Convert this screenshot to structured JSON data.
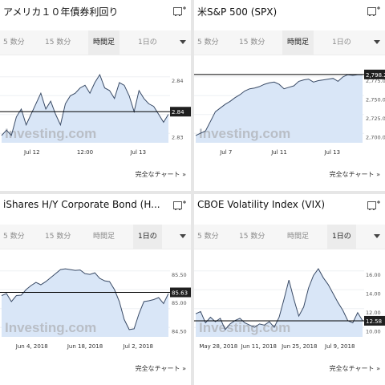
{
  "panels": [
    {
      "title": "アメリカ１０年債券利回り",
      "tabs": [
        "5 数分",
        "15 数分",
        "時間足",
        "1日の"
      ],
      "active_tab": 2,
      "footer": "完全なチャート »",
      "watermark": "Investing.com",
      "chart_data": {
        "type": "line",
        "x_ticks": [
          "Jul 12",
          "12:00",
          "Jul 13"
        ],
        "y_ticks": [
          "2.84",
          "2.83"
        ],
        "current_value_label": "2.84",
        "values": [
          2.838,
          2.84,
          2.838,
          2.845,
          2.848,
          2.842,
          2.846,
          2.85,
          2.854,
          2.848,
          2.851,
          2.846,
          2.842,
          2.85,
          2.853,
          2.854,
          2.856,
          2.857,
          2.854,
          2.858,
          2.861,
          2.856,
          2.855,
          2.852,
          2.858,
          2.857,
          2.853,
          2.847,
          2.855,
          2.852,
          2.85,
          2.849,
          2.846,
          2.843,
          2.846
        ],
        "last_line": 2.847
      }
    },
    {
      "title": "米S&P 500 (SPX)",
      "tabs": [
        "5 数分",
        "15 数分",
        "時間足",
        "1日の"
      ],
      "active_tab": 2,
      "footer": "完全なチャート »",
      "watermark": "Investing.com",
      "chart_data": {
        "type": "area",
        "x_ticks": [
          "Jul 7",
          "Jul 11",
          "Jul 13"
        ],
        "y_ticks": [
          "2,775.00",
          "2,750.00",
          "2,725.00",
          "2,700.00"
        ],
        "current_value_label": "2,798.29",
        "values": [
          2716,
          2719,
          2722,
          2735,
          2748,
          2753,
          2758,
          2762,
          2767,
          2771,
          2776,
          2779,
          2780,
          2782,
          2785,
          2787,
          2788,
          2785,
          2779,
          2781,
          2783,
          2789,
          2791,
          2792,
          2788,
          2790,
          2791,
          2792,
          2793,
          2789,
          2795,
          2798,
          2797,
          2798,
          2798
        ],
        "last_line": 2798.29
      }
    },
    {
      "title": "iShares H/Y Corporate Bond (H...",
      "tabs": [
        "5 数分",
        "15 数分",
        "時間足",
        "1日の"
      ],
      "active_tab": 3,
      "footer": "完全なチャート »",
      "watermark": "Investing.com",
      "chart_data": {
        "type": "area",
        "x_ticks": [
          "Jun 4, 2018",
          "Jun 18, 2018",
          "Jul 2, 2018"
        ],
        "y_ticks": [
          "85.50",
          "85.00",
          "84.50"
        ],
        "current_value_label": "85.63",
        "values": [
          85.55,
          85.6,
          85.4,
          85.55,
          85.56,
          85.7,
          85.8,
          85.88,
          85.82,
          85.9,
          86.0,
          86.1,
          86.2,
          86.22,
          86.2,
          86.18,
          86.19,
          86.1,
          86.08,
          86.12,
          85.98,
          85.92,
          85.9,
          85.7,
          85.4,
          84.95,
          84.7,
          84.72,
          85.1,
          85.4,
          85.42,
          85.45,
          85.5,
          85.35,
          85.6
        ],
        "last_line": 85.63
      }
    },
    {
      "title": "CBOE Volatility Index (VIX)",
      "tabs": [
        "5 数分",
        "15 数分",
        "時間足",
        "1日の"
      ],
      "active_tab": 3,
      "footer": "完全なチャート »",
      "watermark": "Investing.com",
      "chart_data": {
        "type": "area",
        "x_ticks": [
          "May 28, 2018",
          "Jun 11, 2018",
          "Jun 25, 2018",
          "Jul 9, 2018"
        ],
        "y_ticks": [
          "16.00",
          "14.00",
          "12.00",
          "10.00"
        ],
        "current_value_label": "12.58",
        "values": [
          13.2,
          13.4,
          12.4,
          12.9,
          12.5,
          12.8,
          11.8,
          12.3,
          12.6,
          12.8,
          12.4,
          12.2,
          12.0,
          12.3,
          12.2,
          12.5,
          12.0,
          12.9,
          14.5,
          16.2,
          14.5,
          13.0,
          13.8,
          15.5,
          16.6,
          17.2,
          16.4,
          15.8,
          15.0,
          14.2,
          13.5,
          12.6,
          12.4,
          13.3,
          12.6
        ],
        "last_line": 12.58
      }
    }
  ]
}
